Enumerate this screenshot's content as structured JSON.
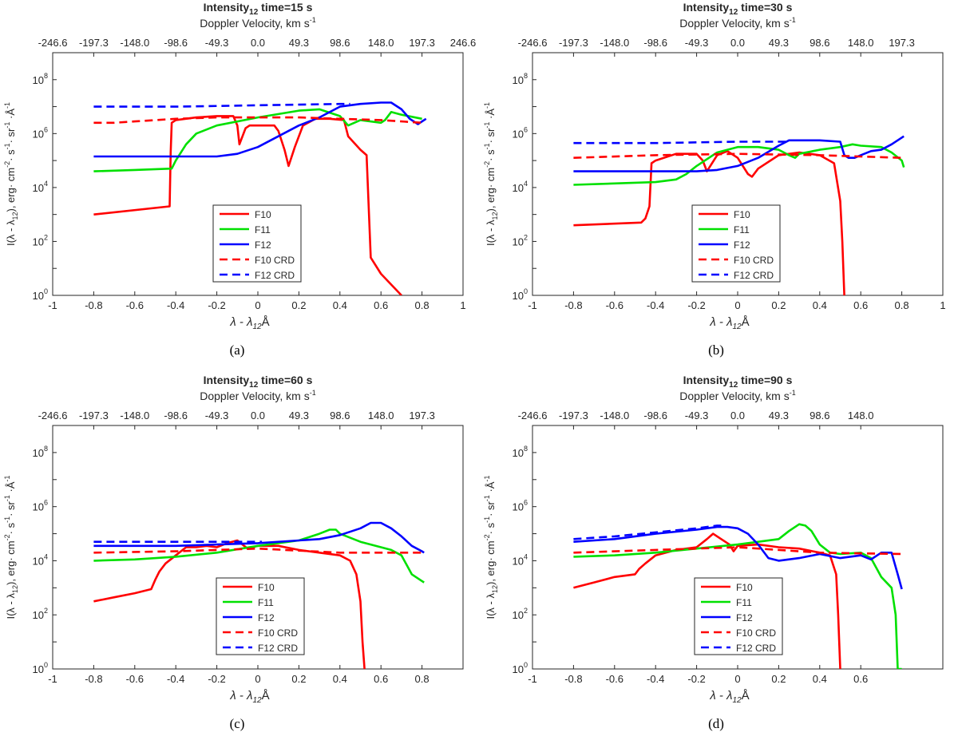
{
  "chart_data": [
    {
      "panel": "(a)",
      "type": "line",
      "title": "Intensity",
      "title_sub": "12",
      "title_rest": " time=15 s",
      "top_axis_label": "Doppler Velocity, km s",
      "top_axis_sup": "-1",
      "top_ticks": [
        "-246.6",
        "-197.3",
        "-148.0",
        "-98.6",
        "-49.3",
        "0.0",
        "49.3",
        "98.6",
        "148.0",
        "197.3",
        "246.6"
      ],
      "xticks": [
        -1,
        -0.8,
        -0.6,
        -0.4,
        -0.2,
        0,
        0.2,
        0.4,
        0.6,
        0.8,
        1
      ],
      "xtick_labels": [
        "-1",
        "-0.8",
        "-0.6",
        "-0.4",
        "-0.2",
        "0",
        "0.2",
        "0.4",
        "0.6",
        "0.8",
        "1"
      ],
      "xlim": [
        -1,
        1
      ],
      "ylim_log10": [
        0,
        9
      ],
      "yticks_exp": [
        "0",
        "2",
        "4",
        "6",
        "8"
      ],
      "ylabel": "I(λ - λ12), erg· cm-2· s-1· sr-1 ·Å-1",
      "xlabel": "λ - λ12Å",
      "caption": "(a)",
      "series": [
        {
          "name": "F10",
          "color": "#ff0000",
          "dashed": false,
          "x": [
            -0.8,
            -0.43,
            -0.425,
            -0.42,
            -0.4,
            -0.3,
            -0.2,
            -0.12,
            -0.1,
            -0.09,
            -0.06,
            -0.04,
            0.08,
            0.1,
            0.13,
            0.15,
            0.18,
            0.22,
            0.28,
            0.35,
            0.42,
            0.44,
            0.5,
            0.53,
            0.55,
            0.6,
            0.7
          ],
          "y": [
            3.0,
            3.3,
            5.3,
            6.4,
            6.5,
            6.6,
            6.65,
            6.65,
            6.3,
            5.6,
            6.2,
            6.3,
            6.3,
            6.1,
            5.4,
            4.8,
            5.5,
            6.3,
            6.55,
            6.55,
            6.5,
            5.9,
            5.4,
            5.2,
            1.4,
            0.8,
            0.0
          ]
        },
        {
          "name": "F11",
          "color": "#00e000",
          "dashed": false,
          "x": [
            -0.8,
            -0.6,
            -0.42,
            -0.4,
            -0.35,
            -0.3,
            -0.2,
            0,
            0.2,
            0.3,
            0.4,
            0.44,
            0.5,
            0.6,
            0.62,
            0.65,
            0.7,
            0.8
          ],
          "y": [
            4.6,
            4.65,
            4.7,
            5.0,
            5.6,
            6.0,
            6.3,
            6.6,
            6.85,
            6.9,
            6.65,
            6.3,
            6.5,
            6.4,
            6.5,
            6.8,
            6.7,
            6.55
          ]
        },
        {
          "name": "F12",
          "color": "#0000ff",
          "dashed": false,
          "x": [
            -0.8,
            -0.4,
            -0.2,
            -0.1,
            0,
            0.1,
            0.2,
            0.3,
            0.4,
            0.5,
            0.6,
            0.65,
            0.7,
            0.74,
            0.78,
            0.82
          ],
          "y": [
            5.15,
            5.15,
            5.15,
            5.25,
            5.5,
            5.9,
            6.3,
            6.6,
            7.0,
            7.1,
            7.15,
            7.15,
            6.9,
            6.55,
            6.35,
            6.55
          ]
        },
        {
          "name": "F10 CRD",
          "color": "#ff0000",
          "dashed": true,
          "x": [
            -0.8,
            -0.7,
            -0.6,
            -0.4,
            -0.2,
            0,
            0.2,
            0.4,
            0.6,
            0.8
          ],
          "y": [
            6.4,
            6.4,
            6.45,
            6.55,
            6.6,
            6.6,
            6.6,
            6.55,
            6.5,
            6.4
          ]
        },
        {
          "name": "F12 CRD",
          "color": "#0000ff",
          "dashed": true,
          "x": [
            -0.8,
            -0.4,
            0,
            0.4,
            0.45
          ],
          "y": [
            7.0,
            7.0,
            7.05,
            7.1,
            7.1
          ]
        }
      ],
      "legend": [
        "F10",
        "F11",
        "F12",
        "F10 CRD",
        "F12 CRD"
      ]
    },
    {
      "panel": "(b)",
      "type": "line",
      "title": "Intensity",
      "title_sub": "12",
      "title_rest": " time=30 s",
      "top_axis_label": "Doppler Velocity, km s",
      "top_axis_sup": "-1",
      "top_ticks": [
        "-246.6",
        "-197.3",
        "-148.0",
        "-98.6",
        "-49.3",
        "0.0",
        "49.3",
        "98.6",
        "148.0",
        "197.3"
      ],
      "xticks": [
        -1,
        -0.8,
        -0.6,
        -0.4,
        -0.2,
        0,
        0.2,
        0.4,
        0.6,
        0.8,
        1
      ],
      "xtick_labels": [
        "-1",
        "-0.8",
        "-0.6",
        "-0.4",
        "-0.2",
        "0",
        "0.2",
        "0.4",
        "0.6",
        "0.8",
        "1"
      ],
      "xlim": [
        -1,
        1
      ],
      "ylim_log10": [
        0,
        9
      ],
      "yticks_exp": [
        "0",
        "2",
        "4",
        "6",
        "8"
      ],
      "ylabel": "I(λ - λ12), erg· cm-2· s-1· sr-1 ·Å-1",
      "xlabel": "λ - λ12Å",
      "caption": "(b)",
      "series": [
        {
          "name": "F10",
          "color": "#ff0000",
          "dashed": false,
          "x": [
            -0.8,
            -0.47,
            -0.45,
            -0.43,
            -0.42,
            -0.4,
            -0.3,
            -0.2,
            -0.17,
            -0.15,
            -0.1,
            -0.05,
            0,
            0.05,
            0.07,
            0.1,
            0.2,
            0.3,
            0.4,
            0.47,
            0.5,
            0.51,
            0.52
          ],
          "y": [
            2.6,
            2.7,
            2.85,
            3.3,
            4.9,
            5.0,
            5.25,
            5.25,
            5.0,
            4.6,
            5.2,
            5.35,
            5.1,
            4.5,
            4.4,
            4.7,
            5.2,
            5.3,
            5.2,
            4.9,
            3.5,
            2.0,
            0.0
          ]
        },
        {
          "name": "F11",
          "color": "#00e000",
          "dashed": false,
          "x": [
            -0.8,
            -0.4,
            -0.3,
            -0.25,
            -0.2,
            -0.1,
            0,
            0.1,
            0.2,
            0.25,
            0.28,
            0.3,
            0.4,
            0.5,
            0.56,
            0.6,
            0.7,
            0.75,
            0.8,
            0.81
          ],
          "y": [
            4.1,
            4.2,
            4.3,
            4.5,
            4.8,
            5.3,
            5.5,
            5.5,
            5.4,
            5.2,
            5.1,
            5.25,
            5.4,
            5.5,
            5.6,
            5.55,
            5.5,
            5.3,
            5.0,
            4.75
          ]
        },
        {
          "name": "F12",
          "color": "#0000ff",
          "dashed": false,
          "x": [
            -0.8,
            -0.4,
            -0.2,
            -0.1,
            0,
            0.1,
            0.2,
            0.25,
            0.3,
            0.4,
            0.5,
            0.52,
            0.54,
            0.57,
            0.6,
            0.65,
            0.7,
            0.75,
            0.81
          ],
          "y": [
            4.6,
            4.6,
            4.6,
            4.65,
            4.8,
            5.1,
            5.55,
            5.75,
            5.75,
            5.75,
            5.7,
            5.2,
            5.1,
            5.1,
            5.2,
            5.35,
            5.4,
            5.6,
            5.9
          ]
        },
        {
          "name": "F10 CRD",
          "color": "#ff0000",
          "dashed": true,
          "x": [
            -0.8,
            -0.4,
            0,
            0.4,
            0.8
          ],
          "y": [
            5.1,
            5.2,
            5.25,
            5.2,
            5.1
          ]
        },
        {
          "name": "F12 CRD",
          "color": "#0000ff",
          "dashed": true,
          "x": [
            -0.8,
            -0.4,
            0,
            0.2,
            0.25
          ],
          "y": [
            5.65,
            5.65,
            5.7,
            5.7,
            5.7
          ]
        }
      ],
      "legend": [
        "F10",
        "F11",
        "F12",
        "F10 CRD",
        "F12 CRD"
      ]
    },
    {
      "panel": "(c)",
      "type": "line",
      "title": "Intensity",
      "title_sub": "12",
      "title_rest": " time=60 s",
      "top_axis_label": "Doppler Velocity, km s",
      "top_axis_sup": "-1",
      "top_ticks": [
        "-246.6",
        "-197.3",
        "-148.0",
        "-98.6",
        "-49.3",
        "0.0",
        "49.3",
        "98.6",
        "148.0",
        "197.3"
      ],
      "xticks": [
        -1,
        -0.8,
        -0.6,
        -0.4,
        -0.2,
        0,
        0.2,
        0.4,
        0.6,
        0.8
      ],
      "xtick_labels": [
        "-1",
        "-0.8",
        "-0.6",
        "-0.4",
        "-0.2",
        "0",
        "0.2",
        "0.4",
        "0.6",
        "0.8"
      ],
      "xlim": [
        -1,
        1
      ],
      "ylim_log10": [
        0,
        9
      ],
      "yticks_exp": [
        "0",
        "2",
        "4",
        "6",
        "8"
      ],
      "ylabel": "I(λ - λ12), erg· cm-2· s-1· sr-1 ·Å-1",
      "xlabel": "λ - λ12Å",
      "caption": "(c)",
      "series": [
        {
          "name": "F10",
          "color": "#ff0000",
          "dashed": false,
          "x": [
            -0.8,
            -0.7,
            -0.6,
            -0.52,
            -0.5,
            -0.48,
            -0.45,
            -0.4,
            -0.35,
            -0.3,
            -0.25,
            -0.2,
            -0.15,
            -0.1,
            -0.05,
            0,
            0.1,
            0.2,
            0.3,
            0.4,
            0.45,
            0.48,
            0.5,
            0.51,
            0.52
          ],
          "y": [
            2.5,
            2.65,
            2.8,
            2.95,
            3.3,
            3.6,
            3.9,
            4.2,
            4.5,
            4.5,
            4.55,
            4.5,
            4.65,
            4.75,
            4.45,
            4.55,
            4.55,
            4.4,
            4.3,
            4.2,
            4.0,
            3.5,
            2.5,
            1.0,
            0.0
          ]
        },
        {
          "name": "F11",
          "color": "#00e000",
          "dashed": false,
          "x": [
            -0.8,
            -0.6,
            -0.4,
            -0.2,
            0,
            0.2,
            0.3,
            0.35,
            0.38,
            0.4,
            0.5,
            0.6,
            0.65,
            0.7,
            0.75,
            0.8,
            0.81
          ],
          "y": [
            4.0,
            4.05,
            4.15,
            4.3,
            4.55,
            4.75,
            5.0,
            5.15,
            5.15,
            5.0,
            4.7,
            4.5,
            4.4,
            4.2,
            3.5,
            3.25,
            3.2
          ]
        },
        {
          "name": "F12",
          "color": "#0000ff",
          "dashed": false,
          "x": [
            -0.8,
            -0.4,
            -0.2,
            0,
            0.2,
            0.3,
            0.4,
            0.5,
            0.55,
            0.6,
            0.65,
            0.7,
            0.75,
            0.8,
            0.81
          ],
          "y": [
            4.55,
            4.55,
            4.6,
            4.65,
            4.75,
            4.8,
            4.95,
            5.2,
            5.4,
            5.4,
            5.2,
            4.9,
            4.55,
            4.35,
            4.3
          ]
        },
        {
          "name": "F10 CRD",
          "color": "#ff0000",
          "dashed": true,
          "x": [
            -0.8,
            -0.4,
            0,
            0.4,
            0.8
          ],
          "y": [
            4.3,
            4.35,
            4.45,
            4.3,
            4.3
          ]
        },
        {
          "name": "F12 CRD",
          "color": "#0000ff",
          "dashed": true,
          "x": [
            -0.8,
            -0.4,
            0,
            0.02
          ],
          "y": [
            4.7,
            4.7,
            4.7,
            4.7
          ]
        }
      ],
      "legend": [
        "F10",
        "F11",
        "F12",
        "F10 CRD",
        "F12 CRD"
      ]
    },
    {
      "panel": "(d)",
      "type": "line",
      "title": "Intensity",
      "title_sub": "12",
      "title_rest": " time=90 s",
      "top_axis_label": "Doppler Velocity, km s",
      "top_axis_sup": "-1",
      "top_ticks": [
        "-246.6",
        "-197.3",
        "-148.0",
        "-98.6",
        "-49.3",
        "0.0",
        "49.3",
        "98.6",
        "148.0"
      ],
      "xticks": [
        -1,
        -0.8,
        -0.6,
        -0.4,
        -0.2,
        0,
        0.2,
        0.4,
        0.6
      ],
      "xtick_labels": [
        "-1",
        "-0.8",
        "-0.6",
        "-0.4",
        "-0.2",
        "0",
        "0.2",
        "0.4",
        "0.6"
      ],
      "xlim": [
        -1,
        1.0
      ],
      "ylim_log10": [
        0,
        9
      ],
      "yticks_exp": [
        "0",
        "2",
        "4",
        "6",
        "8"
      ],
      "ylabel": "I(λ - λ12), erg· cm-2· s-1· sr-1 ·Å-1",
      "xlabel": "λ - λ12Å",
      "caption": "(d)",
      "series": [
        {
          "name": "F10",
          "color": "#ff0000",
          "dashed": false,
          "x": [
            -0.8,
            -0.7,
            -0.6,
            -0.5,
            -0.48,
            -0.45,
            -0.4,
            -0.3,
            -0.2,
            -0.15,
            -0.12,
            -0.08,
            -0.04,
            -0.02,
            0,
            0.1,
            0.2,
            0.3,
            0.4,
            0.45,
            0.48,
            0.49,
            0.5
          ],
          "y": [
            3.0,
            3.2,
            3.4,
            3.5,
            3.7,
            3.9,
            4.2,
            4.4,
            4.5,
            4.8,
            5.0,
            4.8,
            4.6,
            4.35,
            4.55,
            4.6,
            4.5,
            4.45,
            4.3,
            4.2,
            3.5,
            2.0,
            0.0
          ]
        },
        {
          "name": "F11",
          "color": "#00e000",
          "dashed": false,
          "x": [
            -0.8,
            -0.6,
            -0.4,
            -0.2,
            0,
            0.2,
            0.25,
            0.3,
            0.33,
            0.36,
            0.4,
            0.45,
            0.5,
            0.6,
            0.65,
            0.7,
            0.75,
            0.77,
            0.78,
            0.8
          ],
          "y": [
            4.15,
            4.2,
            4.3,
            4.45,
            4.6,
            4.8,
            5.1,
            5.35,
            5.3,
            5.1,
            4.6,
            4.3,
            4.25,
            4.3,
            4.1,
            3.4,
            3.0,
            2.0,
            0.0,
            0.0
          ]
        },
        {
          "name": "F12",
          "color": "#0000ff",
          "dashed": false,
          "x": [
            -0.8,
            -0.6,
            -0.4,
            -0.2,
            -0.1,
            -0.05,
            0,
            0.05,
            0.1,
            0.15,
            0.2,
            0.3,
            0.4,
            0.5,
            0.6,
            0.65,
            0.7,
            0.75,
            0.78,
            0.8
          ],
          "y": [
            4.7,
            4.8,
            5.0,
            5.15,
            5.25,
            5.25,
            5.2,
            5.0,
            4.6,
            4.1,
            4.0,
            4.1,
            4.25,
            4.1,
            4.2,
            4.05,
            4.3,
            4.3,
            3.5,
            2.95
          ]
        },
        {
          "name": "F10 CRD",
          "color": "#ff0000",
          "dashed": true,
          "x": [
            -0.8,
            -0.4,
            0,
            0.4,
            0.8
          ],
          "y": [
            4.3,
            4.4,
            4.5,
            4.3,
            4.25
          ]
        },
        {
          "name": "F12 CRD",
          "color": "#0000ff",
          "dashed": true,
          "x": [
            -0.8,
            -0.6,
            -0.4,
            -0.2,
            -0.1,
            -0.08
          ],
          "y": [
            4.8,
            4.9,
            5.05,
            5.2,
            5.3,
            5.3
          ]
        }
      ],
      "legend": [
        "F10",
        "F11",
        "F12",
        "F10 CRD",
        "F12 CRD"
      ]
    }
  ]
}
